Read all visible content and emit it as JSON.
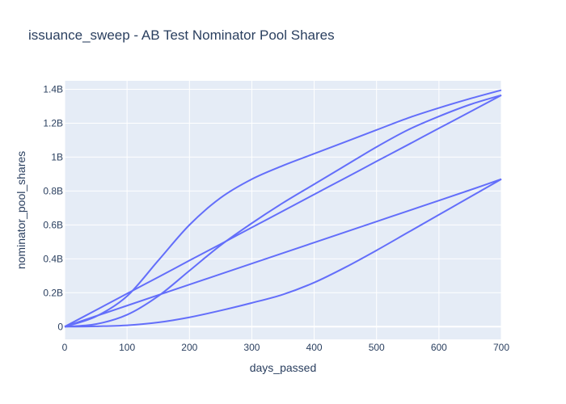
{
  "chart_data": {
    "type": "line",
    "title": "issuance_sweep - AB Test Nominator Pool Shares",
    "xlabel": "days_passed",
    "ylabel": "nominator_pool_shares",
    "xlim": [
      0,
      700
    ],
    "ylim": [
      -75000000,
      1450000000
    ],
    "x_ticks": [
      0,
      100,
      200,
      300,
      400,
      500,
      600,
      700
    ],
    "x_tick_labels": [
      "0",
      "100",
      "200",
      "300",
      "400",
      "500",
      "600",
      "700"
    ],
    "y_ticks": [
      0,
      200000000,
      400000000,
      600000000,
      800000000,
      1000000000,
      1200000000,
      1400000000
    ],
    "y_tick_labels": [
      "0",
      "0.2B",
      "0.4B",
      "0.6B",
      "0.8B",
      "1B",
      "1.2B",
      "1.4B"
    ],
    "grid": true,
    "legend": "none",
    "colors": {
      "line": "#636efa",
      "plot_bg": "#e5ecf6",
      "grid": "#ffffff",
      "text": "#2a3f5f"
    },
    "series": [
      {
        "x": [
          0,
          50,
          100,
          150,
          200,
          250,
          300,
          350,
          400,
          450,
          500,
          550,
          600,
          650,
          700
        ],
        "values": [
          0,
          60000000,
          180000000,
          390000000,
          600000000,
          760000000,
          870000000,
          950000000,
          1020000000,
          1090000000,
          1160000000,
          1230000000,
          1290000000,
          1345000000,
          1395000000
        ]
      },
      {
        "x": [
          0,
          50,
          100,
          150,
          200,
          250,
          300,
          350,
          400,
          450,
          500,
          550,
          600,
          650,
          700
        ],
        "values": [
          0,
          97000000,
          195000000,
          292000000,
          390000000,
          487000000,
          585000000,
          682000000,
          780000000,
          877000000,
          975000000,
          1072000000,
          1170000000,
          1267000000,
          1365000000
        ]
      },
      {
        "x": [
          0,
          50,
          100,
          150,
          200,
          250,
          300,
          350,
          400,
          450,
          500,
          550,
          600,
          650,
          700
        ],
        "values": [
          0,
          15000000,
          70000000,
          180000000,
          330000000,
          480000000,
          610000000,
          730000000,
          840000000,
          950000000,
          1060000000,
          1160000000,
          1240000000,
          1310000000,
          1365000000
        ]
      },
      {
        "x": [
          0,
          50,
          100,
          150,
          200,
          250,
          300,
          350,
          400,
          450,
          500,
          550,
          600,
          650,
          700
        ],
        "values": [
          0,
          62000000,
          124000000,
          186000000,
          248000000,
          310000000,
          372000000,
          434000000,
          496000000,
          558000000,
          620000000,
          682000000,
          744000000,
          806000000,
          870000000
        ]
      },
      {
        "x": [
          0,
          50,
          100,
          150,
          200,
          250,
          300,
          350,
          400,
          450,
          500,
          550,
          600,
          650,
          700
        ],
        "values": [
          0,
          2000000,
          8000000,
          25000000,
          55000000,
          95000000,
          140000000,
          190000000,
          260000000,
          350000000,
          450000000,
          555000000,
          660000000,
          765000000,
          870000000
        ]
      }
    ]
  }
}
